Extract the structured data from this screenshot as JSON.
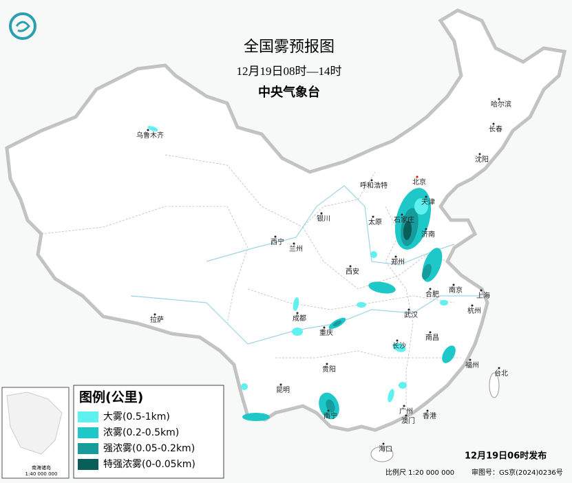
{
  "header": {
    "title": "全国雾预报图",
    "period": "12月19日08时—14时",
    "agency": "中央气象台"
  },
  "cities": [
    "乌鲁木齐",
    "哈尔滨",
    "长春",
    "沈阳",
    "呼和浩特",
    "北京",
    "天津",
    "银川",
    "太原",
    "石家庄",
    "西宁",
    "兰州",
    "济南",
    "郑州",
    "西安",
    "合肥",
    "南京",
    "上海",
    "杭州",
    "武汉",
    "成都",
    "重庆",
    "南昌",
    "长沙",
    "拉萨",
    "福州",
    "台北",
    "贵阳",
    "昆明",
    "南宁",
    "广州",
    "澳门",
    "香港",
    "海口"
  ],
  "legend": {
    "title": "图例(公里)",
    "items": [
      {
        "label": "大雾(0.5-1km)",
        "color": "#5ff0f0"
      },
      {
        "label": "浓雾(0.2-0.5km)",
        "color": "#1fc8c8"
      },
      {
        "label": "强浓雾(0.05-0.2km)",
        "color": "#169c9c"
      },
      {
        "label": "特强浓雾(0-0.05km)",
        "color": "#0a5e5a"
      }
    ]
  },
  "inset": {
    "title": "南海诸岛",
    "scale": "1:40 000 000"
  },
  "footer": {
    "issued": "12月19日06时发布",
    "scale": "比例尺 1:20 000 000",
    "map_number": "审图号：GS京(2024)0236号"
  }
}
